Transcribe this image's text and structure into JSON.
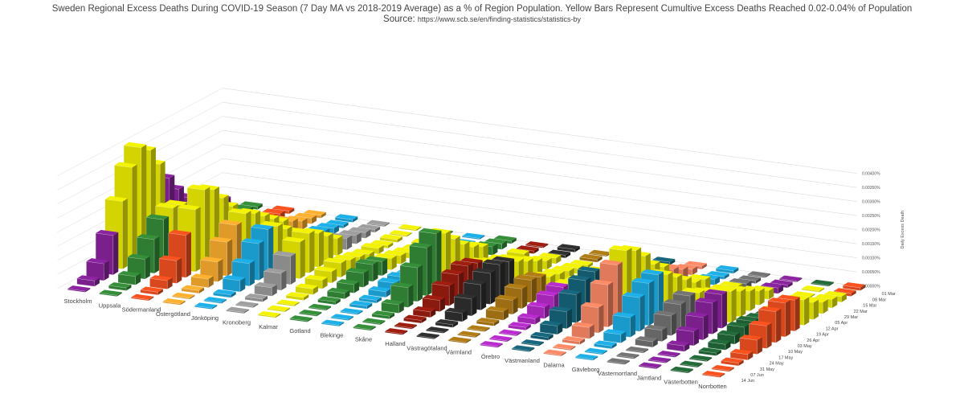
{
  "title": "Sweden Regional Excess Deaths During COVID-19 Season (7 Day MA vs 2018-2019 Average) as a % of Region Population. Yellow Bars Represent Cumultive Excess Deaths Reached 0.02-0.04% of Population",
  "source_label": "Source:",
  "source_url": "https://www.scb.se/en/finding-statistics/statistics-by",
  "chart_data": {
    "type": "bar",
    "subtype": "3d-bar",
    "title": "Sweden Regional Excess Deaths During COVID-19 Season (7 Day MA vs 2018-2019 Average) as a % of Region Population. Yellow Bars Represent Cumultive Excess Deaths Reached 0.02-0.04% of Population",
    "zlabel": "Daily Excess Death",
    "zticks": [
      "0.00000%",
      "0.00050%",
      "0.00100%",
      "0.00150%",
      "0.00200%",
      "0.00250%",
      "0.00300%",
      "0.00350%",
      "0.00400%"
    ],
    "zlim": [
      0,
      0.004
    ],
    "highlight_color": "#d4d400",
    "highlight_rule": "cumulative excess deaths between 0.02% and 0.04% of population",
    "dates": [
      "01 Mar",
      "08 Mar",
      "15 Mar",
      "22 Mar",
      "29 Mar",
      "05 Apr",
      "12 Apr",
      "19 Apr",
      "26 Apr",
      "03 May",
      "10 May",
      "17 May",
      "24 May",
      "31 May",
      "07 Jun",
      "14 Jun"
    ],
    "series": [
      {
        "name": "Stockholm",
        "color": "#7a1f8c",
        "values": [
          0.0,
          0.0002,
          0.0006,
          0.0014,
          0.0024,
          0.0034,
          0.0039,
          0.0036,
          0.0029,
          0.0022,
          0.0016,
          0.0011,
          0.0008,
          0.0005,
          0.0003,
          0.0002
        ]
      },
      {
        "name": "Uppsala",
        "color": "#2e7d32",
        "values": [
          0.0,
          0.0001,
          0.0003,
          0.0007,
          0.0012,
          0.0017,
          0.0019,
          0.0018,
          0.0015,
          0.0011,
          0.0008,
          0.0006,
          0.0004,
          0.0003,
          0.0002,
          0.0001
        ]
      },
      {
        "name": "Södermanland",
        "color": "#d9481c",
        "values": [
          0.0,
          0.0001,
          0.0003,
          0.0008,
          0.0015,
          0.0022,
          0.0027,
          0.0025,
          0.002,
          0.0015,
          0.001,
          0.0007,
          0.0005,
          0.0003,
          0.0002,
          0.0001
        ]
      },
      {
        "name": "Östergötland",
        "color": "#e09a2a",
        "values": [
          0.0,
          0.0,
          0.0001,
          0.0003,
          0.0007,
          0.0012,
          0.0016,
          0.0018,
          0.0016,
          0.0013,
          0.001,
          0.0007,
          0.0005,
          0.0003,
          0.0002,
          0.0001
        ]
      },
      {
        "name": "Jönköping",
        "color": "#1a9acb",
        "values": [
          0.0,
          0.0,
          0.0001,
          0.0004,
          0.0008,
          0.0013,
          0.0016,
          0.0015,
          0.0012,
          0.0009,
          0.0006,
          0.0004,
          0.0003,
          0.0002,
          0.0001,
          0.0001
        ]
      },
      {
        "name": "Kronoberg",
        "color": "#8a8a8a",
        "values": [
          0.0,
          0.0,
          0.0001,
          0.0003,
          0.0006,
          0.001,
          0.0013,
          0.0014,
          0.0012,
          0.0009,
          0.0006,
          0.0004,
          0.0003,
          0.0002,
          0.0001,
          0.0
        ]
      },
      {
        "name": "Kalmar",
        "color": "#d4d400",
        "values": [
          0.0,
          0.0,
          0.0,
          0.0001,
          0.0002,
          0.0003,
          0.0004,
          0.0005,
          0.0004,
          0.0003,
          0.0002,
          0.0002,
          0.0001,
          0.0001,
          0.0,
          0.0
        ]
      },
      {
        "name": "Gotland",
        "color": "#2e7d32",
        "values": [
          0.0,
          0.0,
          0.0,
          0.0001,
          0.0002,
          0.0003,
          0.0005,
          0.0006,
          0.0005,
          0.0004,
          0.0003,
          0.0002,
          0.0001,
          0.0001,
          0.0,
          0.0
        ]
      },
      {
        "name": "Blekinge",
        "color": "#1a9acb",
        "values": [
          0.0,
          0.0,
          0.0,
          0.0001,
          0.0001,
          0.0002,
          0.0003,
          0.0003,
          0.0002,
          0.0002,
          0.0001,
          0.0001,
          0.0001,
          0.0,
          0.0,
          0.0
        ]
      },
      {
        "name": "Skåne",
        "color": "#2e7d32",
        "values": [
          0.0,
          0.0,
          0.0001,
          0.0003,
          0.0007,
          0.0012,
          0.0017,
          0.002,
          0.0018,
          0.0014,
          0.001,
          0.0007,
          0.0005,
          0.0003,
          0.0002,
          0.0001
        ]
      },
      {
        "name": "Halland",
        "color": "#8b1a0e",
        "values": [
          0.0,
          0.0,
          0.0001,
          0.0002,
          0.0004,
          0.0007,
          0.0009,
          0.001,
          0.0009,
          0.0007,
          0.0005,
          0.0004,
          0.0002,
          0.0002,
          0.0001,
          0.0
        ]
      },
      {
        "name": "Västragötaland",
        "color": "#2a2a2a",
        "values": [
          0.0,
          0.0,
          0.0001,
          0.0003,
          0.0006,
          0.0009,
          0.0011,
          0.0012,
          0.0011,
          0.0009,
          0.0007,
          0.0005,
          0.0003,
          0.0002,
          0.0001,
          0.0001
        ]
      },
      {
        "name": "Värmland",
        "color": "#9c6d12",
        "values": [
          0.0,
          0.0,
          0.0,
          0.0001,
          0.0003,
          0.0005,
          0.0007,
          0.0008,
          0.0007,
          0.0005,
          0.0004,
          0.0003,
          0.0002,
          0.0001,
          0.0001,
          0.0
        ]
      },
      {
        "name": "Örebro",
        "color": "#a326b5",
        "values": [
          0.0,
          0.0,
          0.0,
          0.0001,
          0.0002,
          0.0004,
          0.0006,
          0.0007,
          0.0006,
          0.0005,
          0.0004,
          0.0003,
          0.0002,
          0.0001,
          0.0001,
          0.0
        ]
      },
      {
        "name": "Västmanland",
        "color": "#145a6e",
        "values": [
          0.0,
          0.0,
          0.0001,
          0.0003,
          0.0006,
          0.001,
          0.0013,
          0.0014,
          0.0012,
          0.0009,
          0.0007,
          0.0005,
          0.0003,
          0.0002,
          0.0001,
          0.0001
        ]
      },
      {
        "name": "Dalarna",
        "color": "#e07a5a",
        "values": [
          0.0,
          0.0,
          0.0001,
          0.0004,
          0.0009,
          0.0015,
          0.002,
          0.0023,
          0.0021,
          0.0017,
          0.0012,
          0.0009,
          0.0006,
          0.0004,
          0.0002,
          0.0001
        ]
      },
      {
        "name": "Gävleborg",
        "color": "#1a9acb",
        "values": [
          0.0,
          0.0,
          0.0001,
          0.0003,
          0.0007,
          0.0012,
          0.0015,
          0.0016,
          0.0014,
          0.0011,
          0.0008,
          0.0005,
          0.0004,
          0.0002,
          0.0001,
          0.0001
        ]
      },
      {
        "name": "Västernorrland",
        "color": "#666666",
        "values": [
          0.0,
          0.0,
          0.0,
          0.0002,
          0.0004,
          0.0007,
          0.0009,
          0.001,
          0.0009,
          0.0007,
          0.0005,
          0.0004,
          0.0003,
          0.0002,
          0.0001,
          0.0
        ]
      },
      {
        "name": "Jämtland",
        "color": "#7a1f8c",
        "values": [
          0.0,
          0.0,
          0.0,
          0.0002,
          0.0005,
          0.0008,
          0.0011,
          0.0012,
          0.0011,
          0.0009,
          0.0007,
          0.0005,
          0.0003,
          0.0002,
          0.0001,
          0.0
        ]
      },
      {
        "name": "Västerbotten",
        "color": "#1e5e32",
        "values": [
          0.0,
          0.0,
          0.0,
          0.0001,
          0.0002,
          0.0003,
          0.0004,
          0.0004,
          0.0003,
          0.0002,
          0.0002,
          0.0001,
          0.0001,
          0.0,
          0.0,
          0.0
        ]
      },
      {
        "name": "Norrbotten",
        "color": "#d9481c",
        "values": [
          0.0,
          0.0,
          0.0001,
          0.0002,
          0.0005,
          0.0008,
          0.0011,
          0.0012,
          0.0011,
          0.0009,
          0.0006,
          0.0004,
          0.0003,
          0.0002,
          0.0001,
          0.0001
        ]
      }
    ],
    "highlight_ranges": {
      "Stockholm": [
        4,
        8
      ],
      "Uppsala": [
        6,
        10
      ],
      "Södermanland": [
        5,
        9
      ],
      "Östergötland": [
        7,
        11
      ],
      "Jönköping": [
        7,
        11
      ],
      "Kronoberg": [
        6,
        10
      ],
      "Kalmar": [
        0,
        15
      ],
      "Gotland": [
        9,
        13
      ],
      "Blekinge": [
        9,
        13
      ],
      "Skåne": [
        8,
        12
      ],
      "Halland": [
        9,
        13
      ],
      "Västragötaland": [
        9,
        13
      ],
      "Värmland": [
        9,
        13
      ],
      "Örebro": [
        8,
        12
      ],
      "Västmanland": [
        8,
        12
      ],
      "Dalarna": [
        7,
        11
      ],
      "Gävleborg": [
        8,
        12
      ],
      "Västernorrland": [
        8,
        12
      ],
      "Jämtland": [
        8,
        12
      ],
      "Västerbotten": [
        10,
        14
      ],
      "Norrbotten": [
        9,
        13
      ]
    },
    "legend": "none",
    "grid": true
  }
}
